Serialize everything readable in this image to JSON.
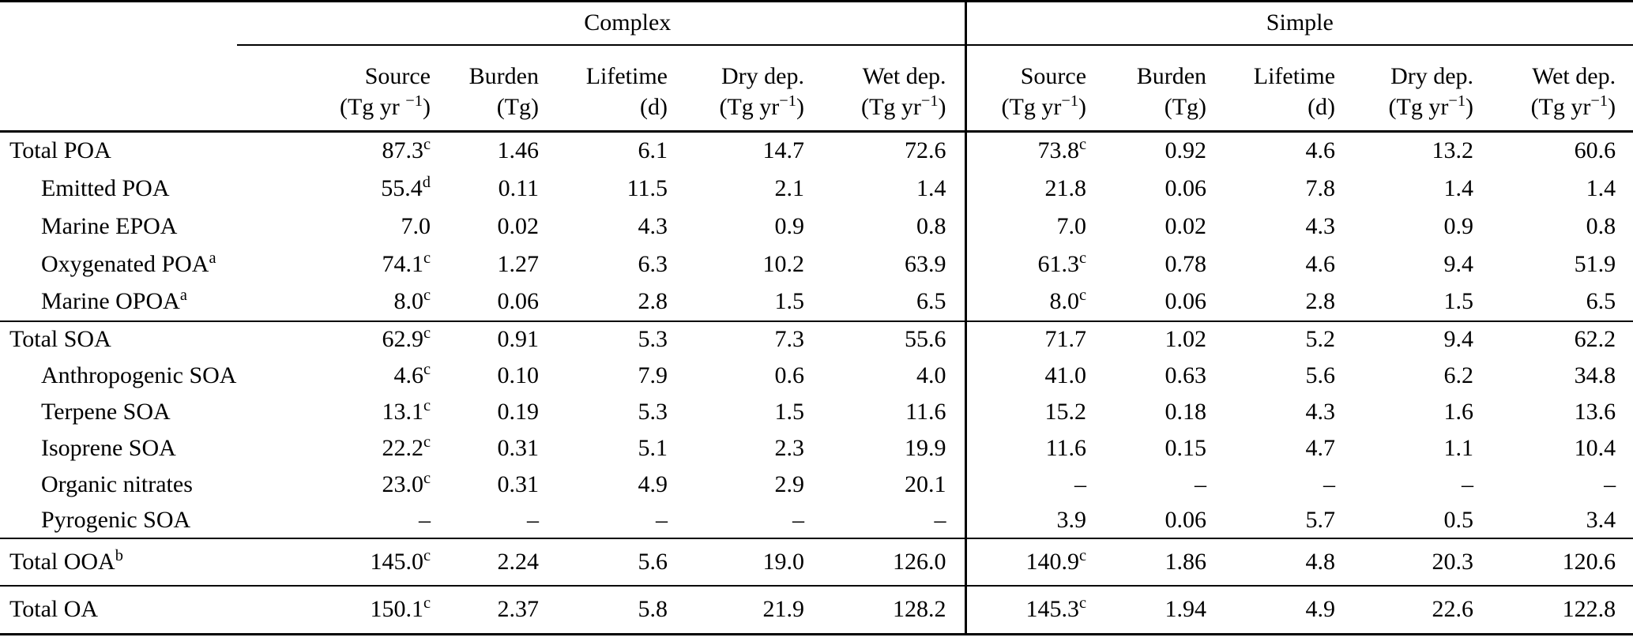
{
  "table": {
    "groups": [
      {
        "label": "Complex"
      },
      {
        "label": "Simple"
      }
    ],
    "columns": {
      "complex": [
        {
          "name": "Source",
          "unit": "(Tg yr ^−1)"
        },
        {
          "name": "Burden",
          "unit": "(Tg)"
        },
        {
          "name": "Lifetime",
          "unit": "(d)"
        },
        {
          "name": "Dry dep.",
          "unit": "(Tg yr^−1)"
        },
        {
          "name": "Wet dep.",
          "unit": "(Tg yr^−1)"
        }
      ],
      "simple": [
        {
          "name": "Source",
          "unit": "(Tg yr^−1)"
        },
        {
          "name": "Burden",
          "unit": "(Tg)"
        },
        {
          "name": "Lifetime",
          "unit": "(d)"
        },
        {
          "name": "Dry dep.",
          "unit": "(Tg yr^−1)"
        },
        {
          "name": "Wet dep.",
          "unit": "(Tg yr^−1)"
        }
      ]
    },
    "sections": [
      {
        "rows": [
          {
            "label": "Total POA",
            "complex": [
              "87.3^c",
              "1.46",
              "6.1",
              "14.7",
              "72.6"
            ],
            "simple": [
              "73.8^c",
              "0.92",
              "4.6",
              "13.2",
              "60.6"
            ]
          },
          {
            "label": "Emitted POA",
            "complex": [
              "55.4^d",
              "0.11",
              "11.5",
              "2.1",
              "1.4"
            ],
            "simple": [
              "21.8",
              "0.06",
              "7.8",
              "1.4",
              "1.4"
            ]
          },
          {
            "label": "Marine EPOA",
            "complex": [
              "7.0",
              "0.02",
              "4.3",
              "0.9",
              "0.8"
            ],
            "simple": [
              "7.0",
              "0.02",
              "4.3",
              "0.9",
              "0.8"
            ]
          },
          {
            "label": "Oxygenated POA^a",
            "complex": [
              "74.1^c",
              "1.27",
              "6.3",
              "10.2",
              "63.9"
            ],
            "simple": [
              "61.3^c",
              "0.78",
              "4.6",
              "9.4",
              "51.9"
            ]
          },
          {
            "label": "Marine OPOA^a",
            "complex": [
              "8.0^c",
              "0.06",
              "2.8",
              "1.5",
              "6.5"
            ],
            "simple": [
              "8.0^c",
              "0.06",
              "2.8",
              "1.5",
              "6.5"
            ]
          }
        ]
      },
      {
        "rows": [
          {
            "label": "Total SOA",
            "complex": [
              "62.9^c",
              "0.91",
              "5.3",
              "7.3",
              "55.6"
            ],
            "simple": [
              "71.7",
              "1.02",
              "5.2",
              "9.4",
              "62.2"
            ]
          },
          {
            "label": "Anthropogenic SOA",
            "complex": [
              "4.6^c",
              "0.10",
              "7.9",
              "0.6",
              "4.0"
            ],
            "simple": [
              "41.0",
              "0.63",
              "5.6",
              "6.2",
              "34.8"
            ]
          },
          {
            "label": "Terpene SOA",
            "complex": [
              "13.1^c",
              "0.19",
              "5.3",
              "1.5",
              "11.6"
            ],
            "simple": [
              "15.2",
              "0.18",
              "4.3",
              "1.6",
              "13.6"
            ]
          },
          {
            "label": "Isoprene SOA",
            "complex": [
              "22.2^c",
              "0.31",
              "5.1",
              "2.3",
              "19.9"
            ],
            "simple": [
              "11.6",
              "0.15",
              "4.7",
              "1.1",
              "10.4"
            ]
          },
          {
            "label": "Organic nitrates",
            "complex": [
              "23.0^c",
              "0.31",
              "4.9",
              "2.9",
              "20.1"
            ],
            "simple": [
              "–",
              "–",
              "–",
              "–",
              "–"
            ]
          },
          {
            "label": "Pyrogenic SOA",
            "complex": [
              "–",
              "–",
              "–",
              "–",
              "–"
            ],
            "simple": [
              "3.9",
              "0.06",
              "5.7",
              "0.5",
              "3.4"
            ]
          }
        ]
      },
      {
        "rows": [
          {
            "label": "Total OOA^b",
            "complex": [
              "145.0^c",
              "2.24",
              "5.6",
              "19.0",
              "126.0"
            ],
            "simple": [
              "140.9^c",
              "1.86",
              "4.8",
              "20.3",
              "120.6"
            ]
          }
        ]
      },
      {
        "rows": [
          {
            "label": "Total OA",
            "complex": [
              "150.1^c",
              "2.37",
              "5.8",
              "21.9",
              "128.2"
            ],
            "simple": [
              "145.3^c",
              "1.94",
              "4.9",
              "22.6",
              "122.8"
            ]
          }
        ]
      }
    ]
  }
}
